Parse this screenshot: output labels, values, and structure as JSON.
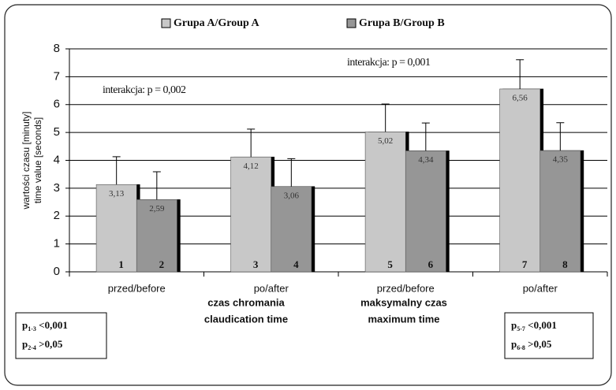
{
  "chart_data": {
    "type": "bar",
    "y_label": [
      "wartości czasu [minuty]",
      "time value [seconds]"
    ],
    "categories": [
      "przed/before",
      "po/after",
      "przed/before",
      "po/after"
    ],
    "groups": [
      [
        "czas chromania",
        "claudication time"
      ],
      [
        "maksymalny czas",
        "maximum time"
      ]
    ],
    "series": [
      {
        "name": "Grupa A/Group A",
        "color": "#c8c8c8",
        "values": [
          3.13,
          4.12,
          5.02,
          6.56
        ],
        "value_labels": [
          "3,13",
          "4,12",
          "5,02",
          "6,56"
        ],
        "errors": [
          1.0,
          1.0,
          1.0,
          1.05
        ],
        "numbers": [
          "1",
          "3",
          "5",
          "7"
        ]
      },
      {
        "name": "Grupa B/Group B",
        "color": "#969696",
        "values": [
          2.59,
          3.06,
          4.34,
          4.35
        ],
        "value_labels": [
          "2,59",
          "3,06",
          "4,34",
          "4,35"
        ],
        "errors": [
          1.0,
          1.0,
          1.0,
          1.0
        ],
        "numbers": [
          "2",
          "4",
          "6",
          "8"
        ]
      }
    ],
    "ylim": [
      0,
      8
    ],
    "yticks": [
      0,
      1,
      2,
      3,
      4,
      5,
      6,
      7,
      8
    ],
    "grid": true,
    "annotations": [
      "interakcja:  p = 0,002",
      "interakcja:  p = 0,001"
    ],
    "boxes": [
      [
        {
          "p": "p",
          "sub": "1-3",
          "text": " <0,001"
        },
        {
          "p": "p",
          "sub": "2-4",
          "text": " >0,05"
        }
      ],
      [
        {
          "p": "p",
          "sub": "5-7",
          "text": " <0,001"
        },
        {
          "p": "p",
          "sub": "6-8",
          "text": " >0,05"
        }
      ]
    ]
  }
}
